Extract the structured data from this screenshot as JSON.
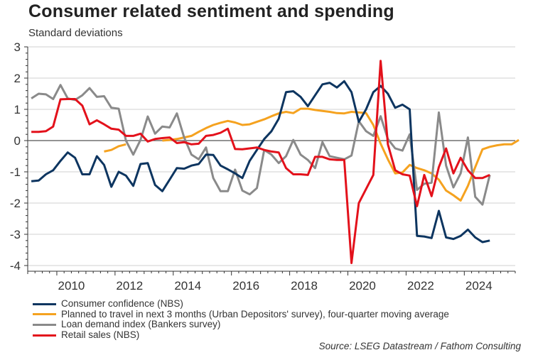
{
  "header": {
    "title": "Consumer related sentiment and spending",
    "subtitle": "Standard deviations"
  },
  "source": "Source: LSEG Datastream / Fathom Consulting",
  "chart_data": {
    "type": "line",
    "title": "Consumer related sentiment and spending",
    "subtitle": "Standard deviations",
    "xlabel": "",
    "ylabel": "Standard deviations",
    "xlim": [
      2009.0,
      2025.75
    ],
    "ylim": [
      -4,
      3
    ],
    "yticks": [
      3,
      2,
      1,
      0,
      -1,
      -2,
      -3,
      -4
    ],
    "yticks_labels": [
      "3",
      "2",
      "1",
      "0",
      "-1",
      "-2",
      "-3",
      "-4"
    ],
    "xticks": [
      2010,
      2012,
      2014,
      2016,
      2018,
      2020,
      2022,
      2024
    ],
    "xticks_labels": [
      "2010",
      "2012",
      "2014",
      "2016",
      "2018",
      "2020",
      "2022",
      "2024"
    ],
    "grid": true,
    "legend_position": "bottom-left",
    "series": [
      {
        "name": "Consumer confidence (NBS)",
        "color": "#0d3560",
        "x_start": 2009.0,
        "x_step": 0.25,
        "values": [
          -1.3,
          -1.28,
          -1.08,
          -0.95,
          -0.65,
          -0.38,
          -0.55,
          -1.08,
          -1.08,
          -0.5,
          -0.78,
          -1.48,
          -1.0,
          -1.12,
          -1.45,
          -0.75,
          -0.72,
          -1.42,
          -1.62,
          -1.25,
          -0.88,
          -0.9,
          -0.8,
          -0.75,
          -0.45,
          -0.46,
          -0.8,
          -0.92,
          -1.05,
          -1.2,
          -0.65,
          -0.3,
          0.05,
          0.3,
          0.7,
          1.55,
          1.58,
          1.4,
          1.1,
          1.45,
          1.8,
          1.85,
          1.7,
          1.9,
          1.55,
          0.6,
          1.0,
          1.55,
          1.75,
          1.5,
          1.05,
          1.15,
          1.0,
          -3.05,
          -3.07,
          -3.12,
          -2.25,
          -3.1,
          -3.15,
          -3.05,
          -2.85,
          -3.1,
          -3.25,
          -3.2
        ]
      },
      {
        "name": "Planned to travel in next 3 months (Urban Depositors' survey), four-quarter moving average",
        "color": "#f5a21f",
        "x_start": 2011.5,
        "x_step": 0.25,
        "values": [
          -0.35,
          -0.3,
          -0.18,
          -0.12,
          null,
          null,
          null,
          null,
          0.0,
          0.02,
          0.05,
          0.1,
          0.15,
          0.28,
          0.4,
          0.5,
          0.57,
          0.63,
          0.58,
          0.5,
          0.52,
          0.6,
          0.68,
          0.78,
          0.87,
          0.92,
          0.88,
          1.02,
          1.02,
          0.98,
          0.95,
          0.92,
          0.88,
          0.87,
          0.92,
          0.9,
          0.88,
          0.5,
          -0.1,
          -0.6,
          -1.05,
          -1.02,
          -0.78,
          -0.88,
          -0.95,
          -1.05,
          -1.25,
          -1.6,
          -1.75,
          -1.92,
          -1.45,
          -0.85,
          -0.28,
          -0.2,
          -0.15,
          -0.12,
          -0.12,
          0.02
        ]
      },
      {
        "name": "Loan demand index (Bankers survey)",
        "color": "#8a8a8a",
        "x_start": 2009.0,
        "x_step": 0.25,
        "values": [
          1.35,
          1.5,
          1.48,
          1.33,
          1.78,
          1.35,
          1.3,
          1.45,
          1.68,
          1.4,
          1.42,
          1.05,
          1.02,
          0.0,
          -0.45,
          0.02,
          0.77,
          0.22,
          0.45,
          0.42,
          0.87,
          0.1,
          -0.45,
          -0.6,
          -0.22,
          -1.2,
          -1.62,
          -1.62,
          -0.93,
          -1.6,
          -1.72,
          -1.52,
          -0.3,
          -0.45,
          -0.72,
          -0.5,
          0.02,
          -0.45,
          -0.62,
          -0.88,
          -0.05,
          -0.5,
          -0.55,
          -0.6,
          -0.48,
          0.62,
          0.3,
          0.15,
          0.78,
          0.05,
          -0.25,
          -0.32,
          0.2,
          -1.58,
          -1.38,
          -1.35,
          0.9,
          -0.8,
          -1.5,
          -1.05,
          0.1,
          -1.8,
          -2.05,
          -1.1
        ]
      },
      {
        "name": "Retail sales (NBS)",
        "color": "#e3111b",
        "x_start": 2009.0,
        "x_step": 0.25,
        "values": [
          0.28,
          0.28,
          0.3,
          0.45,
          1.32,
          1.33,
          1.33,
          1.12,
          0.52,
          0.65,
          0.52,
          0.38,
          0.35,
          0.15,
          0.15,
          0.22,
          -0.03,
          0.05,
          0.08,
          0.1,
          -0.08,
          -0.05,
          -0.12,
          -0.1,
          0.15,
          0.18,
          0.25,
          0.38,
          -0.27,
          -0.28,
          -0.25,
          -0.22,
          -0.3,
          -0.35,
          -0.38,
          -0.88,
          -1.08,
          -1.08,
          -1.1,
          -0.52,
          -0.52,
          -0.6,
          -0.62,
          -0.62,
          -3.92,
          -2.0,
          -1.55,
          -1.1,
          2.55,
          -0.12,
          -0.95,
          -1.08,
          -1.12,
          -2.1,
          -1.1,
          -1.78,
          -0.85,
          -0.25,
          -1.05,
          -0.55,
          -0.95,
          -1.2,
          -1.2,
          -1.1
        ]
      }
    ]
  }
}
